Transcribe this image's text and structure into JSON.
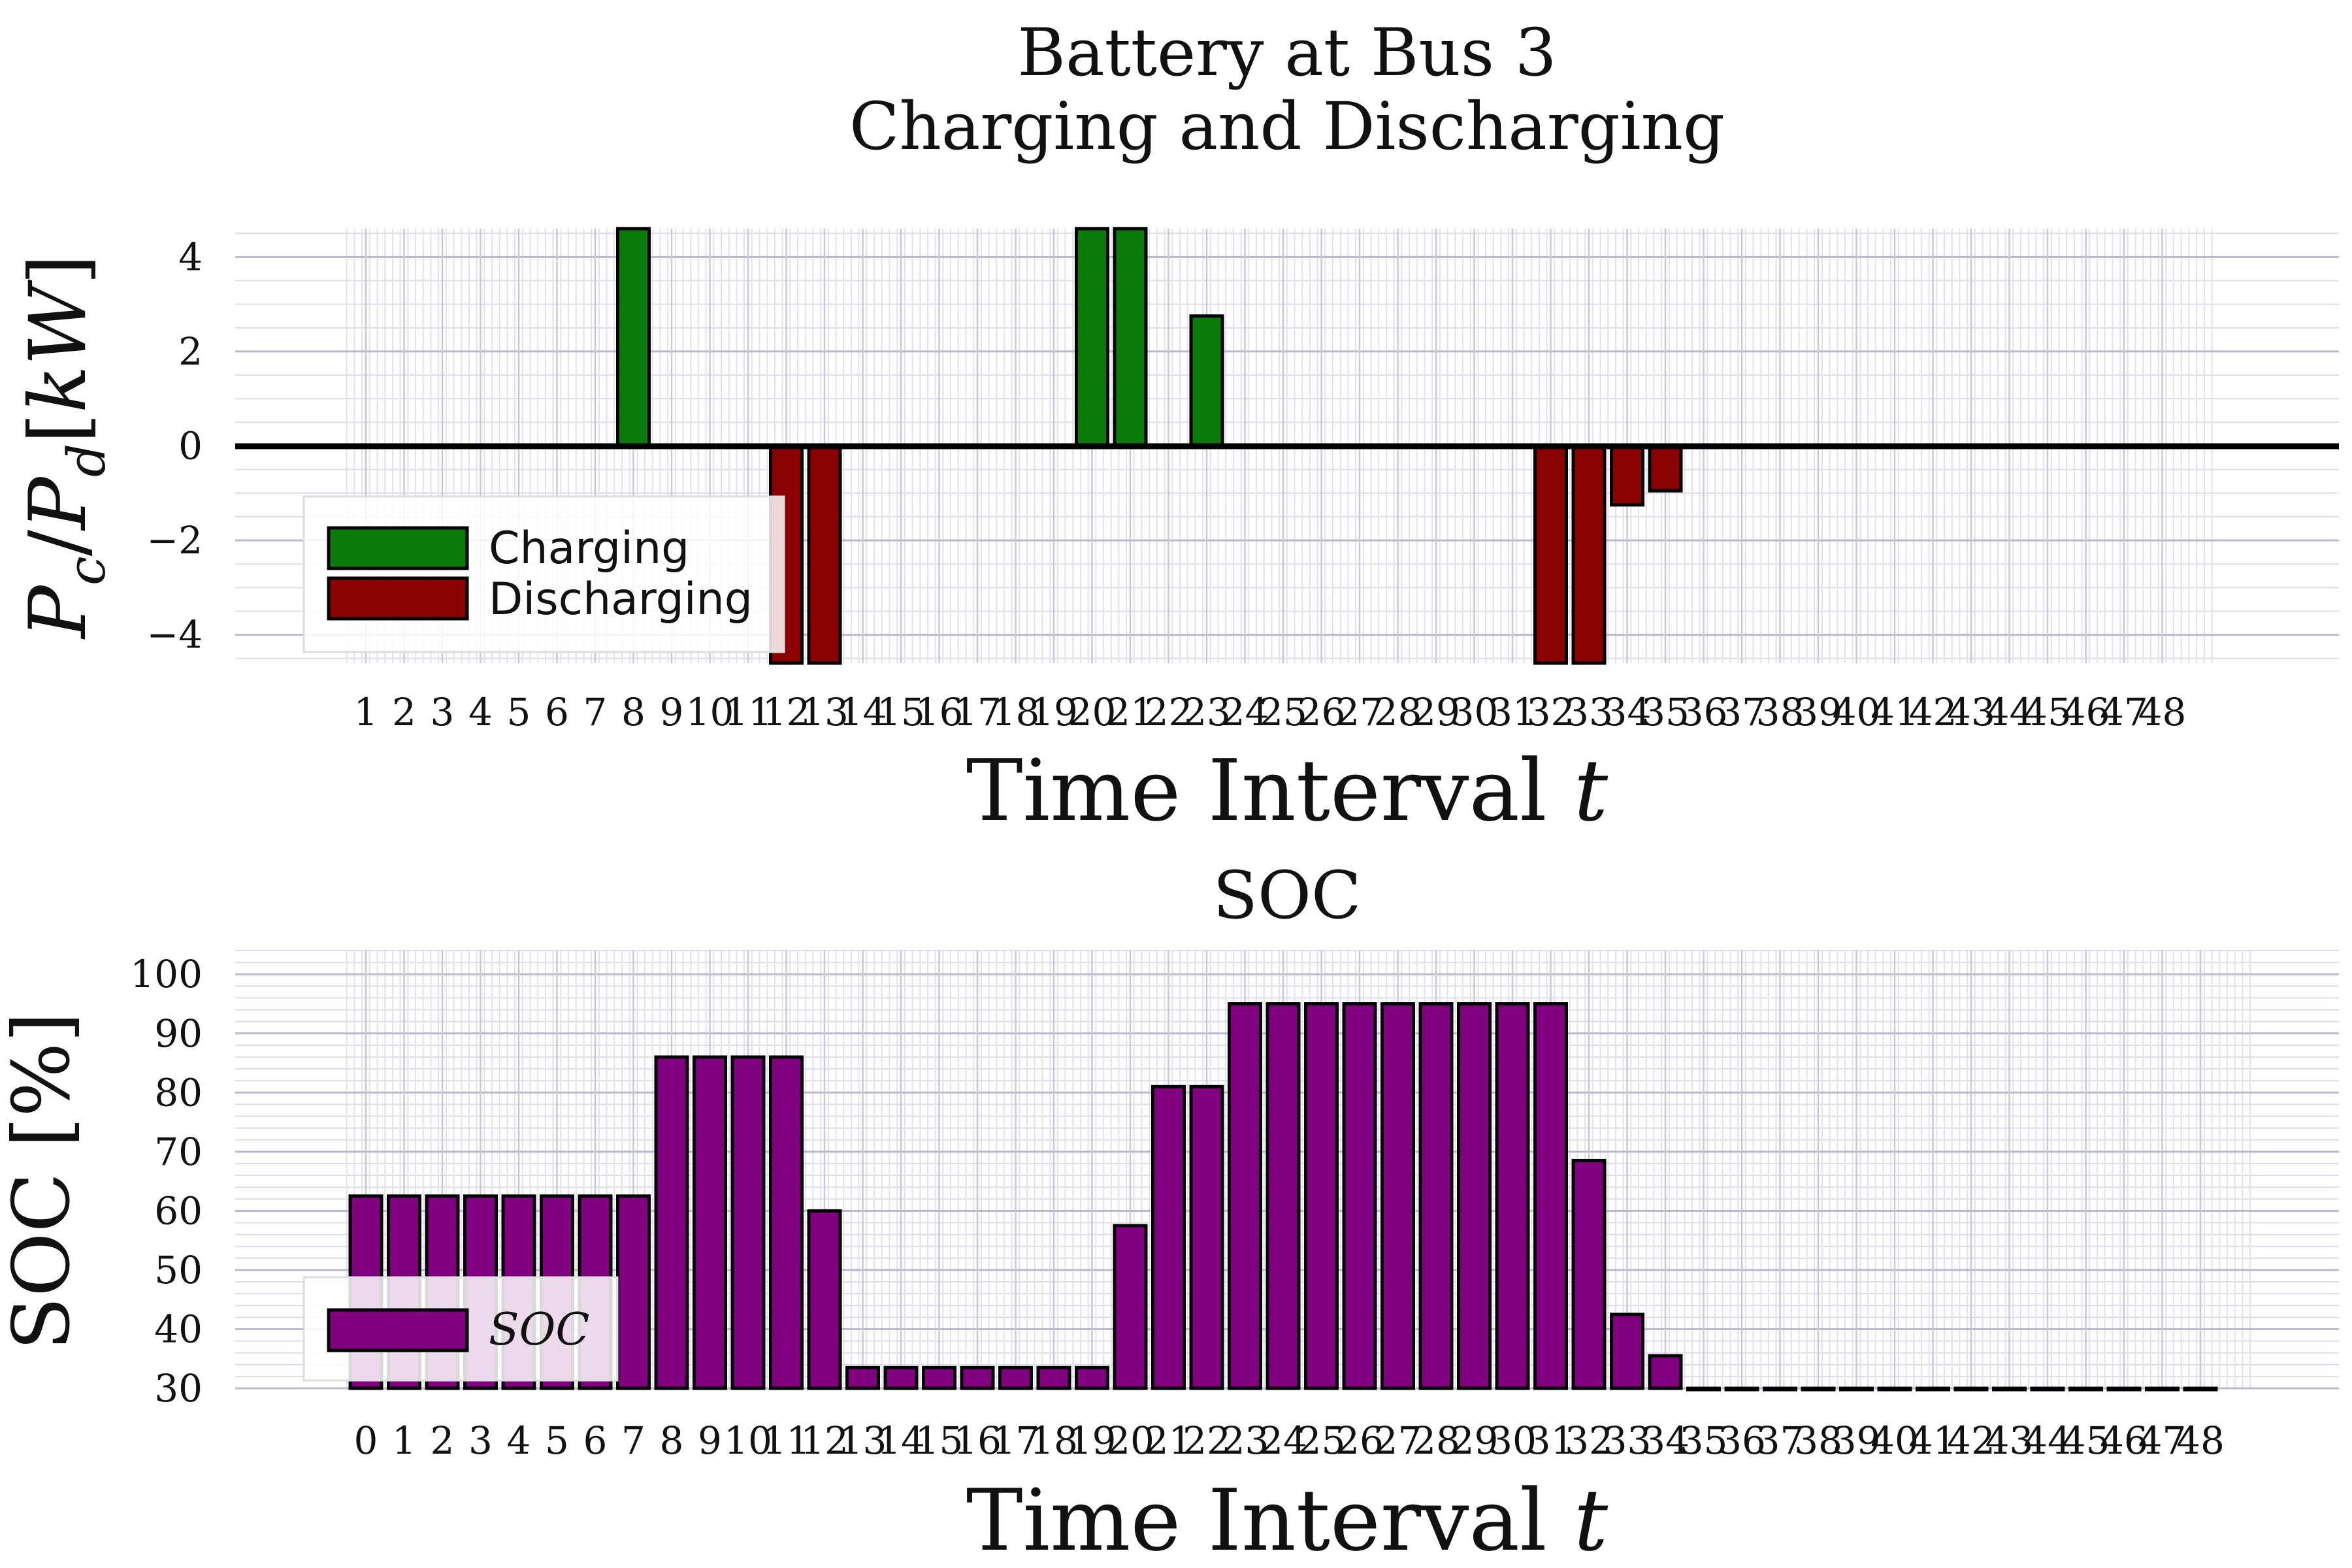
{
  "chart_data": [
    {
      "type": "bar",
      "title": [
        "Battery at Bus 3",
        "Charging and Discharging"
      ],
      "xlabel": "Time Interval t",
      "ylabel": "P_c / P_d [kW]",
      "ylim": [
        -4.6,
        4.6
      ],
      "yticks": [
        -4,
        -2,
        0,
        2,
        4
      ],
      "ytick_labels": [
        "−4",
        "−2",
        "0",
        "2",
        "4"
      ],
      "grid": true,
      "legend_position": "lower-left",
      "categories": [
        "1",
        "2",
        "3",
        "4",
        "5",
        "6",
        "7",
        "8",
        "9",
        "10",
        "11",
        "12",
        "13",
        "14",
        "15",
        "16",
        "17",
        "18",
        "19",
        "20",
        "21",
        "22",
        "23",
        "24",
        "25",
        "26",
        "27",
        "28",
        "29",
        "30",
        "31",
        "32",
        "33",
        "34",
        "35",
        "36",
        "37",
        "38",
        "39",
        "40",
        "41",
        "42",
        "43",
        "44",
        "45",
        "46",
        "47",
        "48"
      ],
      "series": [
        {
          "name": "Charging",
          "color": "#0a7a0a",
          "values": [
            0,
            0,
            0,
            0,
            0,
            0,
            0,
            4.7,
            0,
            0,
            0,
            0,
            0,
            0,
            0,
            0,
            0,
            0,
            0,
            4.7,
            4.7,
            0,
            2.75,
            0,
            0,
            0,
            0,
            0,
            0,
            0,
            0,
            0,
            0,
            0,
            0,
            0,
            0,
            0,
            0,
            0,
            0,
            0,
            0,
            0,
            0,
            0,
            0,
            0
          ]
        },
        {
          "name": "Discharging",
          "color": "#8b0000",
          "values": [
            0,
            0,
            0,
            0,
            0,
            0,
            0,
            0,
            0,
            0,
            0,
            -4.7,
            -4.7,
            0,
            0,
            0,
            0,
            0,
            0,
            0,
            0,
            0,
            0,
            0,
            0,
            0,
            0,
            0,
            0,
            0,
            0,
            -4.7,
            -4.7,
            -1.25,
            -0.95,
            0,
            0,
            0,
            0,
            0,
            0,
            0,
            0,
            0,
            0,
            0,
            0,
            0
          ]
        }
      ]
    },
    {
      "type": "bar",
      "title": "SOC",
      "xlabel": "Time Interval t",
      "ylabel": "SOC [%]",
      "ylim": [
        30,
        104
      ],
      "yticks": [
        30,
        40,
        50,
        60,
        70,
        80,
        90,
        100
      ],
      "ytick_labels": [
        "30",
        "40",
        "50",
        "60",
        "70",
        "80",
        "90",
        "100"
      ],
      "grid": true,
      "legend_position": "lower-left",
      "categories": [
        "0",
        "1",
        "2",
        "3",
        "4",
        "5",
        "6",
        "7",
        "8",
        "9",
        "10",
        "11",
        "12",
        "13",
        "14",
        "15",
        "16",
        "17",
        "18",
        "19",
        "20",
        "21",
        "22",
        "23",
        "24",
        "25",
        "26",
        "27",
        "28",
        "29",
        "30",
        "31",
        "32",
        "33",
        "34",
        "35",
        "36",
        "37",
        "38",
        "39",
        "40",
        "41",
        "42",
        "43",
        "44",
        "45",
        "46",
        "47",
        "48"
      ],
      "series": [
        {
          "name": "SOC",
          "color": "#800080",
          "values": [
            62.5,
            62.5,
            62.5,
            62.5,
            62.5,
            62.5,
            62.5,
            62.5,
            86,
            86,
            86,
            86,
            60,
            33.5,
            33.5,
            33.5,
            33.5,
            33.5,
            33.5,
            33.5,
            57.5,
            81,
            81,
            95,
            95,
            95,
            95,
            95,
            95,
            95,
            95,
            95,
            68.5,
            42.5,
            35.5,
            30,
            30,
            30,
            30,
            30,
            30,
            30,
            30,
            30,
            30,
            30,
            30,
            30,
            30
          ]
        }
      ]
    }
  ]
}
